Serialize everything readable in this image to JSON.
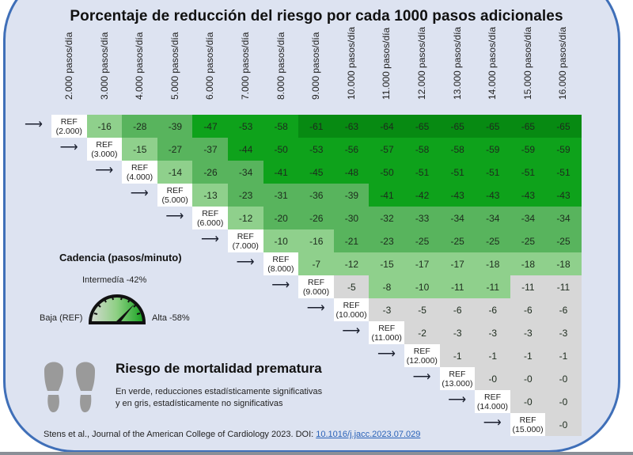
{
  "title": "Porcentaje de reducción del riesgo por cada 1000 pasos adicionales",
  "colors": {
    "frame_border": "#3f6fb8",
    "background": "#dde3f1",
    "tier_darkest": "#078a12",
    "tier_dark": "#0ea21b",
    "tier_medium": "#58b45d",
    "tier_light": "#8fd08c",
    "non_significant": "#d7d7d7",
    "ref": "#ffffff"
  },
  "chart_data": {
    "type": "heatmap",
    "title": "Porcentaje de reducción del riesgo por cada 1000 pasos adicionales",
    "columns": [
      "2.000 pasos/día",
      "3.000 pasos/día",
      "4.000 pasos/día",
      "5.000 pasos/día",
      "6.000 pasos/día",
      "7.000 pasos/día",
      "8.000 pasos/día",
      "9.000 pasos/día",
      "10.000 pasos/día",
      "11.000 pasos/día",
      "12.000 pasos/día",
      "13.000 pasos/día",
      "14.000 pasos/día",
      "15.000 pasos/día",
      "16.000 pasos/día"
    ],
    "rows": [
      {
        "ref_label": "REF",
        "ref_value": "(2.000)",
        "values": [
          -16,
          -28,
          -39,
          -47,
          -53,
          -58,
          -61,
          -63,
          -64,
          -65,
          -65,
          -65,
          -65,
          -65
        ],
        "significant": [
          true,
          true,
          true,
          true,
          true,
          true,
          true,
          true,
          true,
          true,
          true,
          true,
          true,
          true
        ]
      },
      {
        "ref_label": "REF",
        "ref_value": "(3.000)",
        "values": [
          -15,
          -27,
          -37,
          -44,
          -50,
          -53,
          -56,
          -57,
          -58,
          -58,
          -59,
          -59,
          -59
        ],
        "significant": [
          true,
          true,
          true,
          true,
          true,
          true,
          true,
          true,
          true,
          true,
          true,
          true,
          true
        ]
      },
      {
        "ref_label": "REF",
        "ref_value": "(4.000)",
        "values": [
          -14,
          -26,
          -34,
          -41,
          -45,
          -48,
          -50,
          -51,
          -51,
          -51,
          -51,
          -51
        ],
        "significant": [
          true,
          true,
          true,
          true,
          true,
          true,
          true,
          true,
          true,
          true,
          true,
          true
        ]
      },
      {
        "ref_label": "REF",
        "ref_value": "(5.000)",
        "values": [
          -13,
          -23,
          -31,
          -36,
          -39,
          -41,
          -42,
          -43,
          -43,
          -43,
          -43
        ],
        "significant": [
          true,
          true,
          true,
          true,
          true,
          true,
          true,
          true,
          true,
          true,
          true
        ]
      },
      {
        "ref_label": "REF",
        "ref_value": "(6.000)",
        "values": [
          -12,
          -20,
          -26,
          -30,
          -32,
          -33,
          -34,
          -34,
          -34,
          -34
        ],
        "significant": [
          true,
          true,
          true,
          true,
          true,
          true,
          true,
          true,
          true,
          true
        ]
      },
      {
        "ref_label": "REF",
        "ref_value": "(7.000)",
        "values": [
          -10,
          -16,
          -21,
          -23,
          -25,
          -25,
          -25,
          -25,
          -25
        ],
        "significant": [
          true,
          true,
          true,
          true,
          true,
          true,
          true,
          true,
          true
        ]
      },
      {
        "ref_label": "REF",
        "ref_value": "(8.000)",
        "values": [
          -7,
          -12,
          -15,
          -17,
          -17,
          -18,
          -18,
          -18
        ],
        "significant": [
          true,
          true,
          true,
          true,
          true,
          true,
          true,
          true
        ]
      },
      {
        "ref_label": "REF",
        "ref_value": "(9.000)",
        "values": [
          -5,
          -8,
          -10,
          -11,
          -11,
          -11,
          -11
        ],
        "significant": [
          false,
          true,
          true,
          true,
          true,
          false,
          false
        ]
      },
      {
        "ref_label": "REF",
        "ref_value": "(10.000)",
        "values": [
          -3,
          -5,
          -6,
          -6,
          -6,
          -6
        ],
        "significant": [
          false,
          false,
          false,
          false,
          false,
          false
        ]
      },
      {
        "ref_label": "REF",
        "ref_value": "(11.000)",
        "values": [
          -2,
          -3,
          -3,
          -3,
          -3
        ],
        "significant": [
          false,
          false,
          false,
          false,
          false
        ]
      },
      {
        "ref_label": "REF",
        "ref_value": "(12.000)",
        "values": [
          -1,
          -1,
          -1,
          -1
        ],
        "significant": [
          false,
          false,
          false,
          false
        ]
      },
      {
        "ref_label": "REF",
        "ref_value": "(13.000)",
        "values": [
          "-0",
          "-0",
          "-0"
        ],
        "significant": [
          false,
          false,
          false
        ]
      },
      {
        "ref_label": "REF",
        "ref_value": "(14.000)",
        "values": [
          "-0",
          "-0"
        ],
        "significant": [
          false,
          false
        ]
      },
      {
        "ref_label": "REF",
        "ref_value": "(15.000)",
        "values": [
          "-0"
        ],
        "significant": [
          false
        ]
      }
    ],
    "color_tiers": [
      {
        "range": "<= -60",
        "color": "#078a12"
      },
      {
        "range": "-40 to -59",
        "color": "#0ea21b"
      },
      {
        "range": "-20 to -39",
        "color": "#58b45d"
      },
      {
        "range": "-1 to -19",
        "color": "#8fd08c"
      },
      {
        "range": "non-significant",
        "color": "#d7d7d7"
      }
    ]
  },
  "cadence": {
    "title": "Cadencia (pasos/minuto)",
    "intermediate": "Intermedía -42%",
    "low": "Baja (REF)",
    "high": "Alta -58%"
  },
  "legend": {
    "title": "Riesgo de mortalidad prematura",
    "line1": "En verde, reducciones estadísticamente significativas",
    "line2": "y en gris, estadísticamente no significativas"
  },
  "citation": {
    "text": "Stens et al., Journal of the American College of Cardiology 2023. DOI: ",
    "doi": "10.1016/j.jacc.2023.07.029"
  }
}
